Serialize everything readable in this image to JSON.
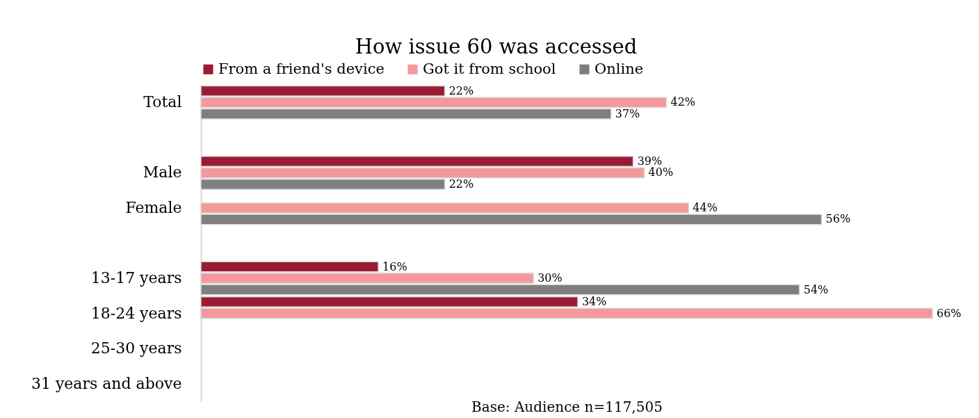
{
  "chart_data": {
    "type": "bar",
    "orientation": "horizontal",
    "title": "How issue 60 was accessed",
    "categories": [
      "Total",
      null,
      "Male",
      "Female",
      null,
      "13-17 years",
      "18-24 years",
      "25-30 years",
      "31 years and above"
    ],
    "series": [
      {
        "name": "From a friend's device",
        "color": "#9b1b34",
        "values": [
          22,
          null,
          39,
          null,
          null,
          16,
          34,
          null,
          null
        ],
        "value_labels": [
          "22%",
          null,
          "39%",
          null,
          null,
          "16%",
          "34%",
          null,
          null
        ]
      },
      {
        "name": "Got it from school",
        "color": "#f4999b",
        "values": [
          42,
          null,
          40,
          44,
          null,
          30,
          66,
          null,
          null
        ],
        "value_labels": [
          "42%",
          null,
          "40%",
          "44%",
          null,
          "30%",
          "66%",
          null,
          null
        ]
      },
      {
        "name": "Online",
        "color": "#7f7f7f",
        "values": [
          37,
          null,
          22,
          56,
          null,
          54,
          null,
          null,
          null
        ],
        "value_labels": [
          "37%",
          null,
          "22%",
          "56%",
          null,
          "54%",
          null,
          null,
          null
        ]
      }
    ],
    "legend": "top",
    "grid": false,
    "annotations": [
      "Base: Audience n=117,505"
    ]
  }
}
